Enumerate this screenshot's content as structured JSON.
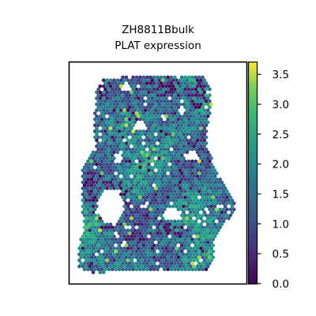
{
  "chart_data": {
    "type": "heatmap",
    "plot_style": "spatial hexagonal spot map",
    "title": "ZH8811Bbulk",
    "subtitle": "PLAT expression",
    "xlabel": "",
    "ylabel": "",
    "axis_ticks": false,
    "grid": false,
    "colormap": "viridis",
    "colorbar": {
      "placement": "right",
      "vmin": 0.0,
      "vmax": 3.7,
      "ticks": [
        0.0,
        0.5,
        1.0,
        1.5,
        2.0,
        2.5,
        3.0,
        3.5
      ],
      "tick_labels": [
        "0.0",
        "0.5",
        "1.0",
        "1.5",
        "2.0",
        "2.5",
        "3.0",
        "3.5"
      ]
    },
    "value_summary": {
      "typical_range": [
        1.2,
        2.6
      ],
      "dominant_value": 1.9,
      "low_value_spots": 0.0,
      "max_observed": 3.6
    }
  }
}
